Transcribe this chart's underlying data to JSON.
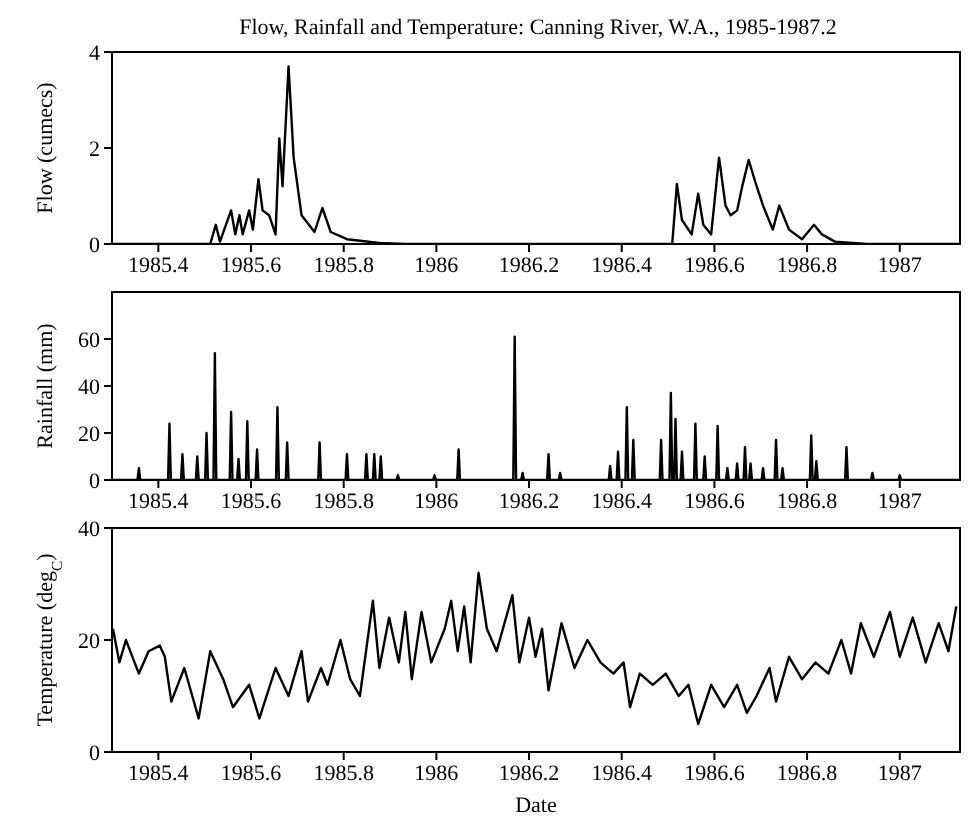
{
  "chart_data": [
    {
      "type": "line",
      "title": "Flow, Rainfall and Temperature: Canning River, W.A., 1985-1987.2",
      "ylabel": "Flow (cumecs)",
      "color": "#000000",
      "marker": "none",
      "x": [
        1985.3,
        1985.512,
        1985.524,
        1985.533,
        1985.557,
        1985.566,
        1985.575,
        1985.582,
        1985.596,
        1985.604,
        1985.616,
        1985.625,
        1985.639,
        1985.653,
        1985.661,
        1985.668,
        1985.681,
        1985.692,
        1985.709,
        1985.737,
        1985.754,
        1985.772,
        1985.807,
        1985.877,
        1985.933,
        1986.509,
        1986.519,
        1986.53,
        1986.551,
        1986.565,
        1986.576,
        1986.593,
        1986.61,
        1986.624,
        1986.635,
        1986.649,
        1986.66,
        1986.674,
        1986.688,
        1986.705,
        1986.726,
        1986.74,
        1986.761,
        1986.789,
        1986.815,
        1986.832,
        1986.86,
        1986.93,
        1987.13
      ],
      "values": [
        0,
        0,
        0.4,
        0.05,
        0.7,
        0.2,
        0.6,
        0.2,
        0.7,
        0.3,
        1.35,
        0.7,
        0.6,
        0.2,
        2.2,
        1.2,
        3.7,
        1.8,
        0.6,
        0.25,
        0.75,
        0.25,
        0.1,
        0.02,
        0,
        0,
        1.25,
        0.5,
        0.2,
        1.05,
        0.4,
        0.2,
        1.8,
        0.8,
        0.6,
        0.7,
        1.2,
        1.75,
        1.3,
        0.8,
        0.3,
        0.8,
        0.3,
        0.1,
        0.4,
        0.2,
        0.05,
        0,
        0
      ],
      "xlim": [
        1985.3,
        1987.13
      ],
      "xticks": [
        1985.4,
        1985.6,
        1985.8,
        1986,
        1986.2,
        1986.4,
        1986.6,
        1986.8,
        1987
      ],
      "ylim": [
        0,
        4
      ],
      "yticks": [
        0,
        2,
        4
      ]
    },
    {
      "type": "line",
      "ylabel": "Rainfall (mm)",
      "color": "#000000",
      "marker": "none",
      "x": [
        1985.3,
        1985.355,
        1985.358,
        1985.361,
        1985.421,
        1985.424,
        1985.427,
        1985.449,
        1985.452,
        1985.455,
        1985.481,
        1985.484,
        1985.487,
        1985.501,
        1985.504,
        1985.507,
        1985.519,
        1985.522,
        1985.525,
        1985.554,
        1985.557,
        1985.56,
        1985.57,
        1985.573,
        1985.576,
        1985.589,
        1985.592,
        1985.595,
        1985.61,
        1985.613,
        1985.616,
        1985.654,
        1985.657,
        1985.66,
        1985.675,
        1985.678,
        1985.681,
        1985.745,
        1985.748,
        1985.751,
        1985.804,
        1985.807,
        1985.81,
        1985.846,
        1985.849,
        1985.852,
        1985.863,
        1985.866,
        1985.869,
        1985.877,
        1985.88,
        1985.883,
        1985.914,
        1985.917,
        1985.92,
        1985.993,
        1985.996,
        1985.999,
        1986.045,
        1986.048,
        1986.051,
        1986.166,
        1986.169,
        1986.172,
        1986.183,
        1986.186,
        1986.189,
        1986.239,
        1986.242,
        1986.245,
        1986.264,
        1986.267,
        1986.27,
        1986.372,
        1986.375,
        1986.378,
        1986.389,
        1986.392,
        1986.395,
        1986.408,
        1986.411,
        1986.414,
        1986.422,
        1986.425,
        1986.428,
        1986.482,
        1986.485,
        1986.488,
        1986.503,
        1986.506,
        1986.509,
        1986.513,
        1986.516,
        1986.519,
        1986.527,
        1986.53,
        1986.533,
        1986.556,
        1986.559,
        1986.562,
        1986.576,
        1986.579,
        1986.582,
        1986.604,
        1986.607,
        1986.61,
        1986.625,
        1986.628,
        1986.631,
        1986.646,
        1986.649,
        1986.652,
        1986.663,
        1986.666,
        1986.669,
        1986.675,
        1986.678,
        1986.681,
        1986.702,
        1986.705,
        1986.708,
        1986.73,
        1986.733,
        1986.736,
        1986.744,
        1986.747,
        1986.75,
        1986.806,
        1986.809,
        1986.812,
        1986.817,
        1986.82,
        1986.823,
        1986.882,
        1986.885,
        1986.888,
        1986.938,
        1986.941,
        1986.944,
        1986.997,
        1987,
        1987.003,
        1987.13
      ],
      "values": [
        0,
        0,
        5,
        0,
        0,
        24,
        0,
        0,
        11,
        0,
        0,
        10,
        0,
        0,
        20,
        0,
        0,
        54,
        0,
        0,
        29,
        0,
        0,
        9,
        0,
        0,
        25,
        0,
        0,
        13,
        0,
        0,
        31,
        0,
        0,
        16,
        0,
        0,
        16,
        0,
        0,
        11,
        0,
        0,
        11,
        0,
        0,
        11,
        0,
        0,
        10,
        0,
        0,
        2,
        0,
        0,
        2,
        0,
        0,
        13,
        0,
        0,
        61,
        0,
        0,
        3,
        0,
        0,
        11,
        0,
        0,
        3,
        0,
        0,
        6,
        0,
        0,
        12,
        0,
        0,
        31,
        0,
        0,
        17,
        0,
        0,
        17,
        0,
        0,
        37,
        0,
        0,
        26,
        0,
        0,
        12,
        0,
        0,
        24,
        0,
        0,
        10,
        0,
        0,
        23,
        0,
        0,
        5,
        0,
        0,
        7,
        0,
        0,
        14,
        0,
        0,
        7,
        0,
        0,
        5,
        0,
        0,
        17,
        0,
        0,
        5,
        0,
        0,
        19,
        0,
        0,
        8,
        0,
        0,
        14,
        0,
        0,
        3,
        0,
        0,
        2,
        0,
        0
      ],
      "xlim": [
        1985.3,
        1987.13
      ],
      "xticks": [
        1985.4,
        1985.6,
        1985.8,
        1986,
        1986.2,
        1986.4,
        1986.6,
        1986.8,
        1987
      ],
      "ylim": [
        0,
        80
      ],
      "yticks": [
        0,
        20,
        40,
        60
      ]
    },
    {
      "type": "line",
      "xlabel": "Date",
      "ylabel": "Temperature (deg$_{C}$)",
      "color": "#000000",
      "marker": "none",
      "x": [
        1985.302,
        1985.316,
        1985.33,
        1985.358,
        1985.379,
        1985.403,
        1985.414,
        1985.428,
        1985.456,
        1985.487,
        1985.512,
        1985.54,
        1985.561,
        1985.596,
        1985.618,
        1985.653,
        1985.681,
        1985.709,
        1985.723,
        1985.751,
        1985.765,
        1985.793,
        1985.814,
        1985.835,
        1985.863,
        1985.877,
        1985.898,
        1985.919,
        1985.933,
        1985.947,
        1985.968,
        1985.989,
        1986.018,
        1986.032,
        1986.046,
        1986.06,
        1986.074,
        1986.091,
        1986.109,
        1986.13,
        1986.164,
        1986.179,
        1986.2,
        1986.214,
        1986.228,
        1986.242,
        1986.27,
        1986.298,
        1986.326,
        1986.354,
        1986.382,
        1986.404,
        1986.418,
        1986.439,
        1986.467,
        1986.495,
        1986.523,
        1986.544,
        1986.565,
        1986.593,
        1986.621,
        1986.649,
        1986.67,
        1986.691,
        1986.719,
        1986.733,
        1986.761,
        1986.789,
        1986.818,
        1986.846,
        1986.874,
        1986.895,
        1986.916,
        1986.944,
        1986.979,
        1987,
        1987.028,
        1987.056,
        1987.084,
        1987.105,
        1987.122
      ],
      "values": [
        22,
        16,
        20,
        14,
        18,
        19,
        17,
        9,
        15,
        6,
        18,
        13,
        8,
        12,
        6,
        15,
        10,
        18,
        9,
        15,
        12,
        20,
        13,
        10,
        27,
        15,
        24,
        16,
        25,
        13,
        25,
        16,
        22,
        27,
        18,
        26,
        16,
        32,
        22,
        18,
        28,
        16,
        24,
        17,
        22,
        11,
        23,
        15,
        20,
        16,
        14,
        16,
        8,
        14,
        12,
        14,
        10,
        12,
        5,
        12,
        8,
        12,
        7,
        10,
        15,
        9,
        17,
        13,
        16,
        14,
        20,
        14,
        23,
        17,
        25,
        17,
        24,
        16,
        23,
        18,
        26
      ],
      "xlim": [
        1985.3,
        1987.13
      ],
      "xticks": [
        1985.4,
        1985.6,
        1985.8,
        1986,
        1986.2,
        1986.4,
        1986.6,
        1986.8,
        1987
      ],
      "ylim": [
        0,
        40
      ],
      "yticks": [
        0,
        20,
        40
      ]
    }
  ]
}
